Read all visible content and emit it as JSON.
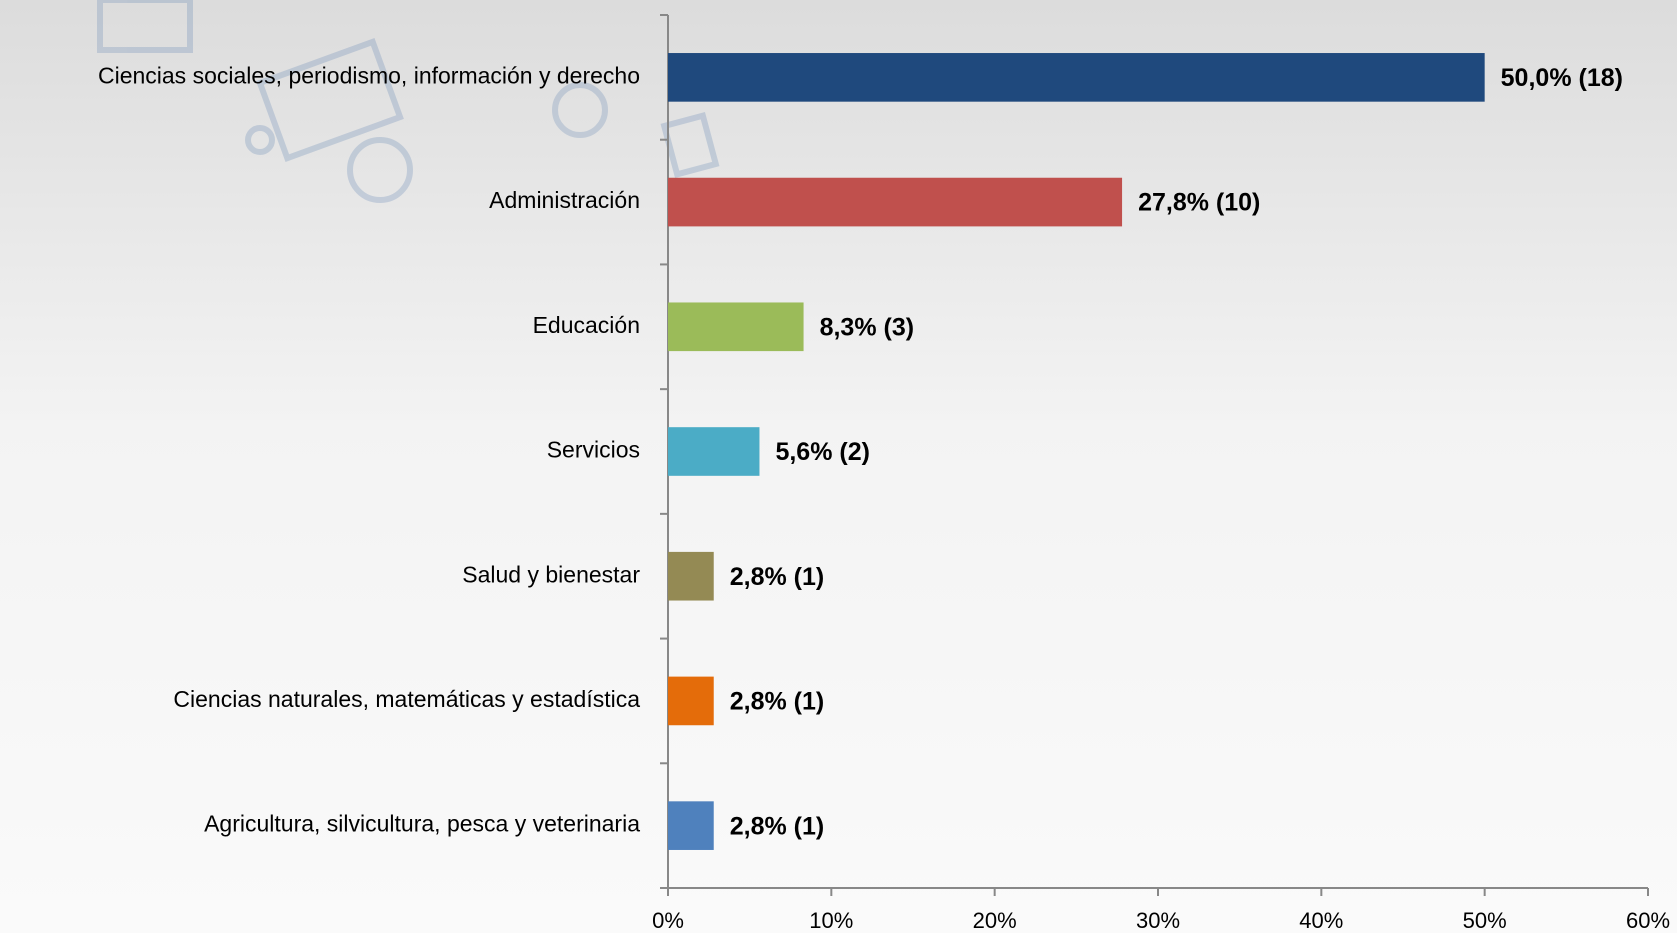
{
  "chart_data": {
    "type": "hbar",
    "categories": [
      "Ciencias sociales, periodismo, información y derecho",
      "Administración",
      "Educación",
      "Servicios",
      "Salud y bienestar",
      "Ciencias naturales, matemáticas y estadística",
      "Agricultura, silvicultura, pesca y veterinaria"
    ],
    "values": [
      50.0,
      27.8,
      8.3,
      5.6,
      2.8,
      2.8,
      2.8
    ],
    "value_labels": [
      "50,0% (18)",
      "27,8% (10)",
      "8,3% (3)",
      "5,6% (2)",
      "2,8% (1)",
      "2,8% (1)",
      "2,8% (1)"
    ],
    "colors": [
      "#1f497d",
      "#c0504d",
      "#9bbb59",
      "#4bacc6",
      "#948a54",
      "#e46c0a",
      "#4f81bd"
    ],
    "xlim": [
      0,
      60
    ],
    "xticks": [
      {
        "value": 0,
        "label": "0%"
      },
      {
        "value": 10,
        "label": "10%"
      },
      {
        "value": 20,
        "label": "20%"
      },
      {
        "value": 30,
        "label": "30%"
      },
      {
        "value": 40,
        "label": "40%"
      },
      {
        "value": 50,
        "label": "50%"
      },
      {
        "value": 60,
        "label": "60%"
      }
    ],
    "grid": false
  }
}
